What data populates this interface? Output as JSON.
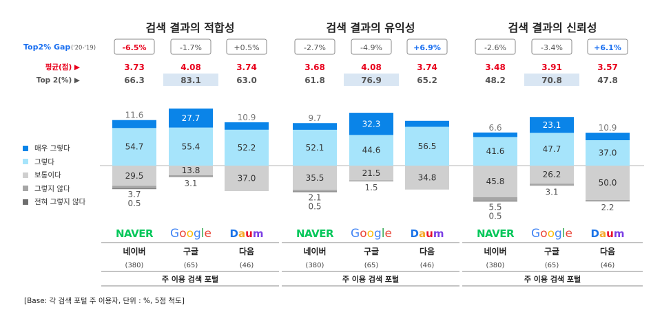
{
  "gap_label": "Top2% Gap",
  "gap_period": "('20-'19)",
  "avg_label": "평균(점) ▶",
  "top2_label": "Top 2(%) ▶",
  "footer_label": "주 이용 검색 포털",
  "base_note": "[Base: 각 검색 포털 주 이용자, 단위 : %, 5점 척도]",
  "legend": [
    {
      "label": "매우 그렇다",
      "color": "#0a84e8"
    },
    {
      "label": "그렇다",
      "color": "#a6e4fb"
    },
    {
      "label": "보통이다",
      "color": "#cfcfcf"
    },
    {
      "label": "그렇지 않다",
      "color": "#a6a6a6"
    },
    {
      "label": "전혀 그렇지 않다",
      "color": "#6e6e6e"
    }
  ],
  "colors": {
    "very_agree": "#0a84e8",
    "agree": "#a6e4fb",
    "neutral": "#cfcfcf",
    "disagree": "#a6a6a6",
    "very_disagree": "#6e6e6e",
    "negative": "#e8001c",
    "positive": "#1a6ff0",
    "highlight": "#d9e6f3",
    "naver": "#03c75a"
  },
  "portals": [
    {
      "name": "네이버",
      "n": "(380)",
      "logo": "NAVER"
    },
    {
      "name": "구글",
      "n": "(65)",
      "logo": "Google"
    },
    {
      "name": "다음",
      "n": "(46)",
      "logo": "Daum"
    }
  ],
  "chart_data": [
    {
      "type": "bar",
      "title": "검색 결과의 적합성",
      "categories": [
        "네이버",
        "구글",
        "다음"
      ],
      "series": [
        {
          "name": "매우 그렇다",
          "values": [
            11.6,
            27.7,
            10.9
          ]
        },
        {
          "name": "그렇다",
          "values": [
            54.7,
            55.4,
            52.2
          ]
        },
        {
          "name": "보통이다",
          "values": [
            29.5,
            13.8,
            37.0
          ]
        },
        {
          "name": "그렇지 않다",
          "values": [
            3.7,
            3.1,
            0
          ]
        },
        {
          "name": "전혀 그렇지 않다",
          "values": [
            0.5,
            0,
            0
          ]
        }
      ],
      "labels": {
        "very_agree": [
          "11.6",
          "27.7",
          "10.9"
        ],
        "agree": [
          "54.7",
          "55.4",
          "52.2"
        ],
        "neutral": [
          "29.5",
          "13.8",
          "37.0"
        ],
        "disagree": [
          "3.7",
          "3.1",
          ""
        ],
        "very_disagree": [
          "0.5",
          "",
          ""
        ]
      },
      "average": [
        "3.73",
        "4.08",
        "3.74"
      ],
      "top2": [
        "66.3",
        "83.1",
        "63.0"
      ],
      "gap": [
        "-6.5%",
        "-1.7%",
        "+0.5%"
      ],
      "gap_sign": [
        -1,
        -1,
        1
      ],
      "gap_emphasis": [
        true,
        false,
        false
      ],
      "highlight_index": 1
    },
    {
      "type": "bar",
      "title": "검색 결과의 유익성",
      "categories": [
        "네이버",
        "구글",
        "다음"
      ],
      "series": [
        {
          "name": "매우 그렇다",
          "values": [
            9.7,
            32.3,
            8.7
          ]
        },
        {
          "name": "그렇다",
          "values": [
            52.1,
            44.6,
            56.5
          ]
        },
        {
          "name": "보통이다",
          "values": [
            35.5,
            21.5,
            34.8
          ]
        },
        {
          "name": "그렇지 않다",
          "values": [
            2.1,
            1.5,
            0
          ]
        },
        {
          "name": "전혀 그렇지 않다",
          "values": [
            0.5,
            0,
            0
          ]
        }
      ],
      "labels": {
        "very_agree": [
          "9.7",
          "32.3",
          ""
        ],
        "agree": [
          "52.1",
          "44.6",
          "56.5"
        ],
        "neutral": [
          "35.5",
          "21.5",
          "34.8"
        ],
        "disagree": [
          "2.1",
          "1.5",
          ""
        ],
        "very_disagree": [
          "0.5",
          "",
          ""
        ]
      },
      "average": [
        "3.68",
        "4.08",
        "3.74"
      ],
      "top2": [
        "61.8",
        "76.9",
        "65.2"
      ],
      "gap": [
        "-2.7%",
        "-4.9%",
        "+6.9%"
      ],
      "gap_sign": [
        -1,
        -1,
        1
      ],
      "gap_emphasis": [
        false,
        false,
        true
      ],
      "highlight_index": 1
    },
    {
      "type": "bar",
      "title": "검색 결과의 신뢰성",
      "categories": [
        "네이버",
        "구글",
        "다음"
      ],
      "series": [
        {
          "name": "매우 그렇다",
          "values": [
            6.6,
            23.1,
            10.9
          ]
        },
        {
          "name": "그렇다",
          "values": [
            41.6,
            47.7,
            37.0
          ]
        },
        {
          "name": "보통이다",
          "values": [
            45.8,
            26.2,
            50.0
          ]
        },
        {
          "name": "그렇지 않다",
          "values": [
            5.5,
            3.1,
            2.2
          ]
        },
        {
          "name": "전혀 그렇지 않다",
          "values": [
            0.5,
            0,
            0
          ]
        }
      ],
      "labels": {
        "very_agree": [
          "6.6",
          "23.1",
          "10.9"
        ],
        "agree": [
          "41.6",
          "47.7",
          "37.0"
        ],
        "neutral": [
          "45.8",
          "26.2",
          "50.0"
        ],
        "disagree": [
          "5.5",
          "3.1",
          "2.2"
        ],
        "very_disagree": [
          "0.5",
          "",
          ""
        ]
      },
      "average": [
        "3.48",
        "3.91",
        "3.57"
      ],
      "top2": [
        "48.2",
        "70.8",
        "47.8"
      ],
      "gap": [
        "-2.6%",
        "-3.4%",
        "+6.1%"
      ],
      "gap_sign": [
        -1,
        -1,
        1
      ],
      "gap_emphasis": [
        false,
        false,
        true
      ],
      "highlight_index": 1
    }
  ]
}
